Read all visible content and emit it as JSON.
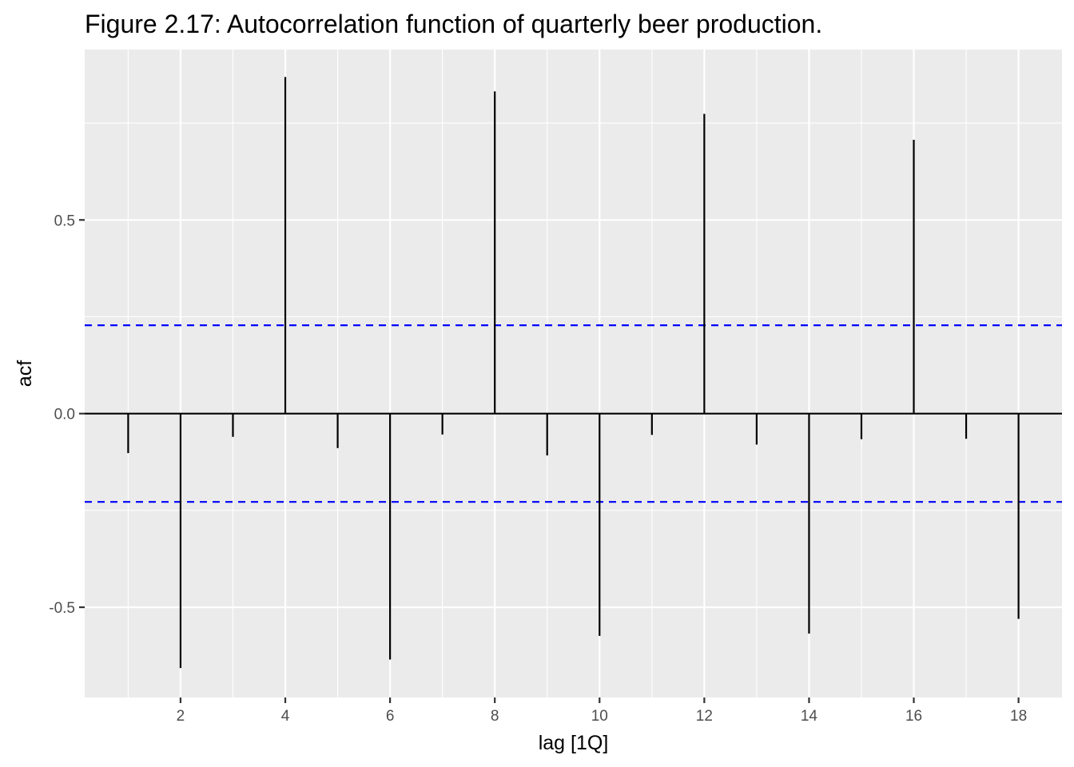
{
  "chart_data": {
    "type": "bar",
    "subtype": "acf-lollipop",
    "title": "Figure 2.17: Autocorrelation function of quarterly beer production.",
    "xlabel": "lag [1Q]",
    "ylabel": "acf",
    "lags": [
      1,
      2,
      3,
      4,
      5,
      6,
      7,
      8,
      9,
      10,
      11,
      12,
      13,
      14,
      15,
      16,
      17,
      18
    ],
    "values": [
      -0.102,
      -0.657,
      -0.06,
      0.869,
      -0.089,
      -0.635,
      -0.054,
      0.832,
      -0.108,
      -0.574,
      -0.055,
      0.774,
      -0.08,
      -0.568,
      -0.066,
      0.707,
      -0.065,
      -0.53
    ],
    "confidence_bound": 0.228,
    "xlim": [
      0.17,
      18.83
    ],
    "ylim": [
      -0.733,
      0.94
    ],
    "x_ticks": [
      2,
      4,
      6,
      8,
      10,
      12,
      14,
      16,
      18
    ],
    "x_tick_labels": [
      "2",
      "4",
      "6",
      "8",
      "10",
      "12",
      "14",
      "16",
      "18"
    ],
    "y_ticks": [
      -0.5,
      0.0,
      0.5
    ],
    "y_tick_labels": [
      "-0.5",
      "0.0",
      "0.5"
    ],
    "colors": {
      "panel_background": "#ebebeb",
      "grid": "#ffffff",
      "bars": "#000000",
      "confidence_lines": "#0000ff",
      "tick_text": "#4d4d4d"
    },
    "grid": true,
    "legend": "none"
  }
}
